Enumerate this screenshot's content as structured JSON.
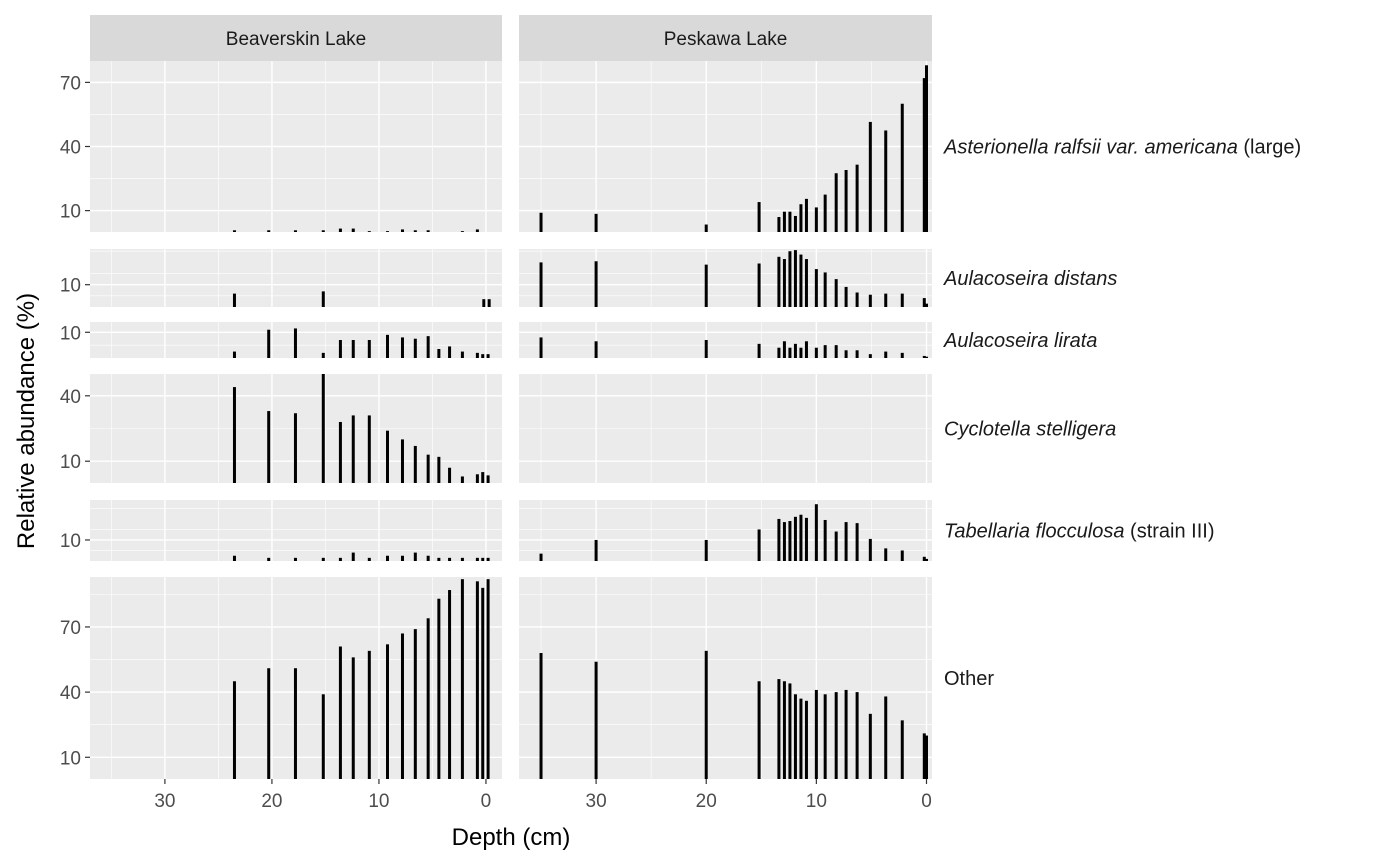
{
  "chart_data": {
    "type": "bar",
    "xlabel": "Depth (cm)",
    "ylabel": "Relative abundance (%)",
    "x_reversed": true,
    "x_ticks": [
      30,
      20,
      10,
      0
    ],
    "lakes": [
      "Beaverskin Lake",
      "Peskawa Lake"
    ],
    "xlim": {
      "Beaverskin Lake": [
        37,
        -1.5
      ],
      "Peskawa Lake": [
        37,
        -0.5
      ]
    },
    "panels": [
      {
        "name": "Asterionella ralfsii var. americana",
        "label_italic": "Asterionella ralfsii var. americana",
        "label_plain": " (large)",
        "ylim": [
          0,
          80
        ],
        "y_ticks": [
          10,
          40,
          70
        ],
        "series": {
          "Beaverskin Lake": [
            {
              "x": 23.5,
              "y": 0.8
            },
            {
              "x": 20.3,
              "y": 0.8
            },
            {
              "x": 17.8,
              "y": 0.8
            },
            {
              "x": 15.2,
              "y": 0.8
            },
            {
              "x": 13.6,
              "y": 1.6
            },
            {
              "x": 12.4,
              "y": 1.6
            },
            {
              "x": 10.9,
              "y": 0.4
            },
            {
              "x": 9.2,
              "y": 0.4
            },
            {
              "x": 7.8,
              "y": 1.2
            },
            {
              "x": 6.6,
              "y": 0.8
            },
            {
              "x": 5.4,
              "y": 0.8
            },
            {
              "x": 2.2,
              "y": 0.4
            },
            {
              "x": 0.8,
              "y": 1.2
            }
          ],
          "Peskawa Lake": [
            {
              "x": 35,
              "y": 9
            },
            {
              "x": 30,
              "y": 8.5
            },
            {
              "x": 20,
              "y": 3.5
            },
            {
              "x": 15.2,
              "y": 14
            },
            {
              "x": 13.4,
              "y": 7
            },
            {
              "x": 12.9,
              "y": 9.5
            },
            {
              "x": 12.4,
              "y": 9.5
            },
            {
              "x": 11.9,
              "y": 7.5
            },
            {
              "x": 11.4,
              "y": 13
            },
            {
              "x": 10.9,
              "y": 15.5
            },
            {
              "x": 10,
              "y": 11.5
            },
            {
              "x": 9.2,
              "y": 17.5
            },
            {
              "x": 8.2,
              "y": 27.5
            },
            {
              "x": 7.3,
              "y": 29
            },
            {
              "x": 6.3,
              "y": 31.5
            },
            {
              "x": 5.1,
              "y": 51.5
            },
            {
              "x": 3.7,
              "y": 47.5
            },
            {
              "x": 2.2,
              "y": 60
            },
            {
              "x": 0.2,
              "y": 72
            },
            {
              "x": 0,
              "y": 78
            }
          ]
        }
      },
      {
        "name": "Aulacoseira distans",
        "label_italic": "Aulacoseira distans",
        "label_plain": "",
        "ylim": [
          0,
          26
        ],
        "y_ticks": [
          10
        ],
        "series": {
          "Beaverskin Lake": [
            {
              "x": 23.5,
              "y": 6
            },
            {
              "x": 15.2,
              "y": 7
            },
            {
              "x": 0.2,
              "y": 3.5
            },
            {
              "x": -0.3,
              "y": 3.5
            }
          ],
          "Peskawa Lake": [
            {
              "x": 35,
              "y": 20
            },
            {
              "x": 30,
              "y": 20.5
            },
            {
              "x": 20,
              "y": 19
            },
            {
              "x": 15.2,
              "y": 19.5
            },
            {
              "x": 13.4,
              "y": 22.5
            },
            {
              "x": 12.9,
              "y": 21.5
            },
            {
              "x": 12.4,
              "y": 25
            },
            {
              "x": 11.9,
              "y": 25.5
            },
            {
              "x": 11.4,
              "y": 23.5
            },
            {
              "x": 10.9,
              "y": 21.5
            },
            {
              "x": 10,
              "y": 17
            },
            {
              "x": 9.2,
              "y": 15.5
            },
            {
              "x": 8.2,
              "y": 12.5
            },
            {
              "x": 7.3,
              "y": 9
            },
            {
              "x": 6.3,
              "y": 6.5
            },
            {
              "x": 5.1,
              "y": 5.5
            },
            {
              "x": 3.7,
              "y": 6
            },
            {
              "x": 2.2,
              "y": 6
            },
            {
              "x": 0.2,
              "y": 4
            },
            {
              "x": 0,
              "y": 1.5
            }
          ]
        }
      },
      {
        "name": "Aulacoseira lirata",
        "label_italic": "Aulacoseira lirata",
        "label_plain": "",
        "ylim": [
          0,
          14
        ],
        "y_ticks": [
          10
        ],
        "series": {
          "Beaverskin Lake": [
            {
              "x": 23.5,
              "y": 2.5
            },
            {
              "x": 20.3,
              "y": 11
            },
            {
              "x": 17.8,
              "y": 11.5
            },
            {
              "x": 15.2,
              "y": 2
            },
            {
              "x": 13.6,
              "y": 7
            },
            {
              "x": 12.4,
              "y": 7
            },
            {
              "x": 10.9,
              "y": 7
            },
            {
              "x": 9.2,
              "y": 9
            },
            {
              "x": 7.8,
              "y": 8
            },
            {
              "x": 6.6,
              "y": 7.5
            },
            {
              "x": 5.4,
              "y": 8.5
            },
            {
              "x": 4.4,
              "y": 3.5
            },
            {
              "x": 3.4,
              "y": 4.5
            },
            {
              "x": 2.2,
              "y": 2.5
            },
            {
              "x": 0.8,
              "y": 2
            },
            {
              "x": 0.3,
              "y": 1.5
            },
            {
              "x": -0.2,
              "y": 1.5
            }
          ],
          "Peskawa Lake": [
            {
              "x": 35,
              "y": 8
            },
            {
              "x": 30,
              "y": 6.5
            },
            {
              "x": 20,
              "y": 7
            },
            {
              "x": 15.2,
              "y": 5.5
            },
            {
              "x": 13.4,
              "y": 4
            },
            {
              "x": 12.9,
              "y": 6.5
            },
            {
              "x": 12.4,
              "y": 4
            },
            {
              "x": 11.9,
              "y": 5.5
            },
            {
              "x": 11.4,
              "y": 4
            },
            {
              "x": 10.9,
              "y": 6.5
            },
            {
              "x": 10,
              "y": 4
            },
            {
              "x": 9.2,
              "y": 5
            },
            {
              "x": 8.2,
              "y": 5
            },
            {
              "x": 7.3,
              "y": 3
            },
            {
              "x": 6.3,
              "y": 3
            },
            {
              "x": 5.1,
              "y": 1.5
            },
            {
              "x": 3.7,
              "y": 2.5
            },
            {
              "x": 2.2,
              "y": 2
            },
            {
              "x": 0.2,
              "y": 0.8
            },
            {
              "x": 0,
              "y": 0.5
            }
          ]
        }
      },
      {
        "name": "Cyclotella stelligera",
        "label_italic": "Cyclotella stelligera",
        "label_plain": "",
        "ylim": [
          0,
          50
        ],
        "y_ticks": [
          10,
          40
        ],
        "series": {
          "Beaverskin Lake": [
            {
              "x": 23.5,
              "y": 44
            },
            {
              "x": 20.3,
              "y": 33
            },
            {
              "x": 17.8,
              "y": 32
            },
            {
              "x": 15.2,
              "y": 50
            },
            {
              "x": 13.6,
              "y": 28
            },
            {
              "x": 12.4,
              "y": 31
            },
            {
              "x": 10.9,
              "y": 31
            },
            {
              "x": 9.2,
              "y": 24
            },
            {
              "x": 7.8,
              "y": 20
            },
            {
              "x": 6.6,
              "y": 17
            },
            {
              "x": 5.4,
              "y": 13
            },
            {
              "x": 4.4,
              "y": 12
            },
            {
              "x": 3.4,
              "y": 7
            },
            {
              "x": 2.2,
              "y": 3
            },
            {
              "x": 0.8,
              "y": 4
            },
            {
              "x": 0.3,
              "y": 5
            },
            {
              "x": -0.2,
              "y": 3.5
            }
          ],
          "Peskawa Lake": []
        }
      },
      {
        "name": "Tabellaria flocculosa",
        "label_italic": "Tabellaria flocculosa",
        "label_plain": " (strain III)",
        "ylim": [
          0,
          29
        ],
        "y_ticks": [
          10
        ],
        "series": {
          "Beaverskin Lake": [
            {
              "x": 23.5,
              "y": 2.5
            },
            {
              "x": 20.3,
              "y": 1.5
            },
            {
              "x": 17.8,
              "y": 1.5
            },
            {
              "x": 15.2,
              "y": 1.5
            },
            {
              "x": 13.6,
              "y": 1.5
            },
            {
              "x": 12.4,
              "y": 4
            },
            {
              "x": 10.9,
              "y": 1.5
            },
            {
              "x": 9.2,
              "y": 2.5
            },
            {
              "x": 7.8,
              "y": 2.5
            },
            {
              "x": 6.6,
              "y": 4
            },
            {
              "x": 5.4,
              "y": 2.5
            },
            {
              "x": 4.4,
              "y": 1.5
            },
            {
              "x": 3.4,
              "y": 1.5
            },
            {
              "x": 2.2,
              "y": 1.5
            },
            {
              "x": 0.8,
              "y": 1.5
            },
            {
              "x": 0.3,
              "y": 1.5
            },
            {
              "x": -0.2,
              "y": 1.5
            }
          ],
          "Peskawa Lake": [
            {
              "x": 35,
              "y": 3.5
            },
            {
              "x": 30,
              "y": 10
            },
            {
              "x": 20,
              "y": 10
            },
            {
              "x": 15.2,
              "y": 15
            },
            {
              "x": 13.4,
              "y": 20
            },
            {
              "x": 12.9,
              "y": 18.5
            },
            {
              "x": 12.4,
              "y": 19
            },
            {
              "x": 11.9,
              "y": 21
            },
            {
              "x": 11.4,
              "y": 22
            },
            {
              "x": 10.9,
              "y": 20.5
            },
            {
              "x": 10,
              "y": 27
            },
            {
              "x": 9.2,
              "y": 19.5
            },
            {
              "x": 8.2,
              "y": 14
            },
            {
              "x": 7.3,
              "y": 18.5
            },
            {
              "x": 6.3,
              "y": 18
            },
            {
              "x": 5.1,
              "y": 10.5
            },
            {
              "x": 3.7,
              "y": 6
            },
            {
              "x": 2.2,
              "y": 5
            },
            {
              "x": 0.2,
              "y": 2
            },
            {
              "x": 0,
              "y": 1
            }
          ]
        }
      },
      {
        "name": "Other",
        "label_italic": "",
        "label_plain": "Other",
        "ylim": [
          0,
          93
        ],
        "y_ticks": [
          10,
          40,
          70
        ],
        "series": {
          "Beaverskin Lake": [
            {
              "x": 23.5,
              "y": 45
            },
            {
              "x": 20.3,
              "y": 51
            },
            {
              "x": 17.8,
              "y": 51
            },
            {
              "x": 15.2,
              "y": 39
            },
            {
              "x": 13.6,
              "y": 61
            },
            {
              "x": 12.4,
              "y": 56
            },
            {
              "x": 10.9,
              "y": 59
            },
            {
              "x": 9.2,
              "y": 62
            },
            {
              "x": 7.8,
              "y": 67
            },
            {
              "x": 6.6,
              "y": 69
            },
            {
              "x": 5.4,
              "y": 74
            },
            {
              "x": 4.4,
              "y": 83
            },
            {
              "x": 3.4,
              "y": 87
            },
            {
              "x": 2.2,
              "y": 92
            },
            {
              "x": 0.8,
              "y": 91
            },
            {
              "x": 0.3,
              "y": 88
            },
            {
              "x": -0.2,
              "y": 92
            }
          ],
          "Peskawa Lake": [
            {
              "x": 35,
              "y": 58
            },
            {
              "x": 30,
              "y": 54
            },
            {
              "x": 20,
              "y": 59
            },
            {
              "x": 15.2,
              "y": 45
            },
            {
              "x": 13.4,
              "y": 46
            },
            {
              "x": 12.9,
              "y": 45
            },
            {
              "x": 12.4,
              "y": 44
            },
            {
              "x": 11.9,
              "y": 39
            },
            {
              "x": 11.4,
              "y": 37
            },
            {
              "x": 10.9,
              "y": 36
            },
            {
              "x": 10,
              "y": 41
            },
            {
              "x": 9.2,
              "y": 39
            },
            {
              "x": 8.2,
              "y": 40
            },
            {
              "x": 7.3,
              "y": 41
            },
            {
              "x": 6.3,
              "y": 40
            },
            {
              "x": 5.1,
              "y": 30
            },
            {
              "x": 3.7,
              "y": 38
            },
            {
              "x": 2.2,
              "y": 27
            },
            {
              "x": 0.2,
              "y": 21
            },
            {
              "x": 0,
              "y": 20
            }
          ]
        }
      }
    ]
  }
}
